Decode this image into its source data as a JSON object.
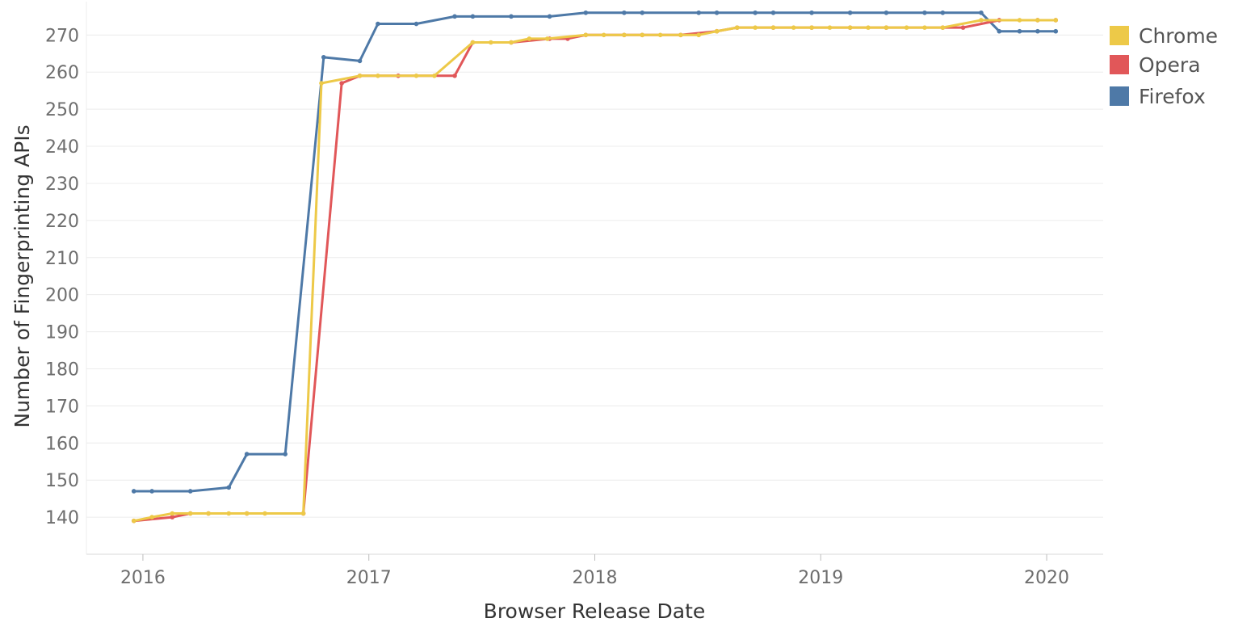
{
  "chart_data": {
    "type": "line",
    "xlabel": "Browser Release Date",
    "ylabel": "Number of Fingerprinting APIs",
    "xlim": [
      2015.75,
      2020.25
    ],
    "ylim": [
      130,
      279
    ],
    "x_ticks": [
      2016,
      2017,
      2018,
      2019,
      2020
    ],
    "x_tick_labels": [
      "2016",
      "2017",
      "2018",
      "2019",
      "2020"
    ],
    "y_ticks": [
      140,
      150,
      160,
      170,
      180,
      190,
      200,
      210,
      220,
      230,
      240,
      250,
      260,
      270
    ],
    "y_tick_labels": [
      "140",
      "150",
      "160",
      "170",
      "180",
      "190",
      "200",
      "210",
      "220",
      "230",
      "240",
      "250",
      "260",
      "270"
    ],
    "grid": true,
    "legend": "right-top",
    "series": [
      {
        "name": "Firefox",
        "color": "#4e79a7",
        "x": [
          2015.96,
          2016.04,
          2016.21,
          2016.38,
          2016.46,
          2016.63,
          2016.8,
          2016.96,
          2017.04,
          2017.21,
          2017.38,
          2017.46,
          2017.63,
          2017.8,
          2017.96,
          2018.13,
          2018.21,
          2018.46,
          2018.54,
          2018.71,
          2018.79,
          2018.96,
          2019.13,
          2019.29,
          2019.46,
          2019.54,
          2019.71,
          2019.79,
          2019.88,
          2019.96,
          2020.04
        ],
        "y": [
          147,
          147,
          147,
          148,
          157,
          157,
          264,
          263,
          273,
          273,
          275,
          275,
          275,
          275,
          276,
          276,
          276,
          276,
          276,
          276,
          276,
          276,
          276,
          276,
          276,
          276,
          276,
          271,
          271,
          271,
          271
        ]
      },
      {
        "name": "Opera",
        "color": "#e15759",
        "x": [
          2015.96,
          2016.13,
          2016.21,
          2016.29,
          2016.46,
          2016.71,
          2016.88,
          2016.96,
          2017.13,
          2017.38,
          2017.46,
          2017.63,
          2017.8,
          2017.88,
          2017.96,
          2018.13,
          2018.21,
          2018.38,
          2018.54,
          2018.63,
          2018.79,
          2018.96,
          2019.13,
          2019.29,
          2019.54,
          2019.63,
          2019.79,
          2019.96,
          2020.04
        ],
        "y": [
          139,
          140,
          141,
          141,
          141,
          141,
          257,
          259,
          259,
          259,
          268,
          268,
          269,
          269,
          270,
          270,
          270,
          270,
          271,
          272,
          272,
          272,
          272,
          272,
          272,
          272,
          274,
          274,
          274
        ]
      },
      {
        "name": "Chrome",
        "color": "#edc948",
        "x": [
          2015.96,
          2016.04,
          2016.13,
          2016.21,
          2016.29,
          2016.38,
          2016.46,
          2016.54,
          2016.71,
          2016.79,
          2016.96,
          2017.04,
          2017.21,
          2017.29,
          2017.46,
          2017.54,
          2017.63,
          2017.71,
          2017.79,
          2017.96,
          2018.04,
          2018.13,
          2018.21,
          2018.29,
          2018.38,
          2018.46,
          2018.54,
          2018.63,
          2018.71,
          2018.79,
          2018.88,
          2018.96,
          2019.04,
          2019.13,
          2019.21,
          2019.29,
          2019.38,
          2019.46,
          2019.54,
          2019.71,
          2019.88,
          2019.96,
          2020.04
        ],
        "y": [
          139,
          140,
          141,
          141,
          141,
          141,
          141,
          141,
          141,
          257,
          259,
          259,
          259,
          259,
          268,
          268,
          268,
          269,
          269,
          270,
          270,
          270,
          270,
          270,
          270,
          270,
          271,
          272,
          272,
          272,
          272,
          272,
          272,
          272,
          272,
          272,
          272,
          272,
          272,
          274,
          274,
          274,
          274
        ]
      }
    ],
    "legend_order": [
      "Chrome",
      "Opera",
      "Firefox"
    ]
  }
}
